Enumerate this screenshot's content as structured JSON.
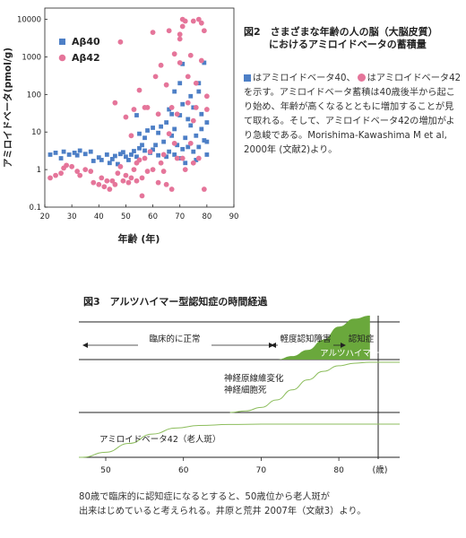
{
  "fig2": {
    "title_line1": "図2　さまざまな年齢の人の脳（大脳皮質）",
    "title_line2": "におけるアミロイドベータの蓄積量",
    "caption_part1": "はアミロイドベータ40、",
    "caption_part2": "はアミロイドベータ42を示す。アミロイドベータ蓄積は40歳後半から起こり始め、年齢が高くなるとともに増加することが見て取れる。そして、アミロイドベータ42の増加がより急峻である。Morishima-Kawashima M et al, 2000年 (文献2)より。",
    "colors": {
      "ab40": "#4d7fc6",
      "ab42": "#e5759a"
    }
  },
  "fig3": {
    "title": "図3　アルツハイマー型認知症の時間経過",
    "labels": {
      "normal": "臨床的に正常",
      "mci": "軽度認知障害",
      "dementia": "認知症",
      "ad": "アルツハイマー病",
      "neuro1": "神経原線維変化",
      "neuro2": "神経細胞死",
      "amyloid": "アミロイドベータ42（老人斑）"
    },
    "x_unit": "(歳)",
    "x_ticks": [
      50,
      60,
      70,
      80
    ],
    "caption_line1": "80歳で臨床的に認知症になるとすると、50歳位から老人斑が",
    "caption_line2": "出来はじめていると考えられる。井原と荒井 2007年（文献3）より。",
    "colors": {
      "fill": "#6aa83c",
      "line": "#8cbd5c"
    }
  },
  "chart_data": [
    {
      "type": "scatter",
      "title": "",
      "xlabel": "年齢 (年)",
      "ylabel": "アミロイドベータ(pmol/g)",
      "xlim": [
        20,
        90
      ],
      "ylim": [
        0.1,
        20000
      ],
      "yscale": "log",
      "x_ticks": [
        20,
        30,
        40,
        50,
        60,
        70,
        80,
        90
      ],
      "y_ticks": [
        0.1,
        1,
        10,
        100,
        1000,
        10000
      ],
      "legend_position": "top-left",
      "series": [
        {
          "name": "Aβ40",
          "marker": "square",
          "color": "#4d7fc6",
          "points": [
            [
              22,
              2.5
            ],
            [
              24,
              2.8
            ],
            [
              26,
              2
            ],
            [
              27,
              3
            ],
            [
              29,
              2.5
            ],
            [
              31,
              2.8
            ],
            [
              32,
              2.4
            ],
            [
              33,
              3.2
            ],
            [
              35,
              2.6
            ],
            [
              37,
              3
            ],
            [
              38,
              1.7
            ],
            [
              40,
              2.1
            ],
            [
              41,
              1.8
            ],
            [
              43,
              2.5
            ],
            [
              44,
              1.5
            ],
            [
              45,
              1.9
            ],
            [
              46,
              2.3
            ],
            [
              47,
              1.4
            ],
            [
              48,
              2.6
            ],
            [
              49,
              2.9
            ],
            [
              50,
              2.2
            ],
            [
              51,
              1.8
            ],
            [
              52,
              2.5
            ],
            [
              53,
              3.1
            ],
            [
              54,
              2.2
            ],
            [
              55,
              3.7
            ],
            [
              55,
              9
            ],
            [
              56,
              4.5
            ],
            [
              57,
              3.2
            ],
            [
              57,
              7
            ],
            [
              58,
              11
            ],
            [
              59,
              2.8
            ],
            [
              60,
              3.4
            ],
            [
              61,
              4.5
            ],
            [
              62,
              9.5
            ],
            [
              62,
              2.4
            ],
            [
              63,
              14
            ],
            [
              64,
              5.5
            ],
            [
              65,
              2.2
            ],
            [
              65,
              18
            ],
            [
              66,
              3
            ],
            [
              67,
              8
            ],
            [
              67,
              30
            ],
            [
              68,
              2.5
            ],
            [
              68,
              12
            ],
            [
              69,
              4.5
            ],
            [
              70,
              2
            ],
            [
              70,
              28
            ],
            [
              70,
              200
            ],
            [
              71,
              3.5
            ],
            [
              71,
              55
            ],
            [
              71,
              650
            ],
            [
              72,
              7
            ],
            [
              72,
              1.5
            ],
            [
              73,
              4
            ],
            [
              73,
              22
            ],
            [
              74,
              90
            ],
            [
              74,
              15
            ],
            [
              75,
              3
            ],
            [
              75,
              45
            ],
            [
              76,
              8
            ],
            [
              76,
              1.8
            ],
            [
              77,
              120
            ],
            [
              77,
              200
            ],
            [
              77,
              4
            ],
            [
              78,
              30
            ],
            [
              78,
              12
            ],
            [
              79,
              700
            ],
            [
              79,
              6
            ],
            [
              80,
              18
            ],
            [
              80,
              2.5
            ],
            [
              80,
              5.5
            ],
            [
              54,
              28
            ],
            [
              60,
              13
            ],
            [
              66,
              40
            ],
            [
              68,
              120
            ]
          ]
        },
        {
          "name": "Aβ42",
          "marker": "circle",
          "color": "#e5759a",
          "points": [
            [
              22,
              0.6
            ],
            [
              24,
              0.7
            ],
            [
              26,
              0.8
            ],
            [
              27,
              1.1
            ],
            [
              28,
              1.3
            ],
            [
              30,
              1.2
            ],
            [
              32,
              0.9
            ],
            [
              33,
              0.7
            ],
            [
              35,
              1.0
            ],
            [
              37,
              0.9
            ],
            [
              38,
              0.45
            ],
            [
              40,
              0.4
            ],
            [
              41,
              0.6
            ],
            [
              42,
              0.35
            ],
            [
              43,
              0.5
            ],
            [
              44,
              0.3
            ],
            [
              45,
              0.5
            ],
            [
              46,
              0.4
            ],
            [
              46,
              60
            ],
            [
              47,
              0.8
            ],
            [
              48,
              1.2
            ],
            [
              48,
              2500
            ],
            [
              49,
              0.5
            ],
            [
              50,
              0.7
            ],
            [
              50,
              25
            ],
            [
              51,
              0.45
            ],
            [
              52,
              0.6
            ],
            [
              52,
              8
            ],
            [
              53,
              1
            ],
            [
              53,
              40
            ],
            [
              54,
              1.5
            ],
            [
              54,
              0.5
            ],
            [
              55,
              1.8
            ],
            [
              55,
              130
            ],
            [
              56,
              0.2
            ],
            [
              56,
              0.6
            ],
            [
              57,
              45
            ],
            [
              57,
              2
            ],
            [
              58,
              0.9
            ],
            [
              58,
              45
            ],
            [
              59,
              3
            ],
            [
              60,
              4500
            ],
            [
              60,
              1
            ],
            [
              61,
              300
            ],
            [
              62,
              0.45
            ],
            [
              62,
              30
            ],
            [
              63,
              600
            ],
            [
              63,
              1.5
            ],
            [
              64,
              2.5
            ],
            [
              64,
              0.9
            ],
            [
              65,
              180
            ],
            [
              65,
              0.4
            ],
            [
              66,
              5000
            ],
            [
              66,
              9
            ],
            [
              67,
              45
            ],
            [
              67,
              0.3
            ],
            [
              68,
              1200
            ],
            [
              68,
              5
            ],
            [
              69,
              30
            ],
            [
              69,
              2
            ],
            [
              70,
              3000
            ],
            [
              70,
              4000
            ],
            [
              70,
              700
            ],
            [
              71,
              10000
            ],
            [
              71,
              6500
            ],
            [
              72,
              9000
            ],
            [
              72,
              1
            ],
            [
              73,
              60
            ],
            [
              73,
              300
            ],
            [
              74,
              1100
            ],
            [
              74,
              5
            ],
            [
              75,
              9000
            ],
            [
              75,
              1.5
            ],
            [
              76,
              200
            ],
            [
              76,
              45
            ],
            [
              77,
              10000
            ],
            [
              77,
              2
            ],
            [
              78,
              8000
            ],
            [
              78,
              800
            ],
            [
              79,
              5000
            ],
            [
              79,
              0.3
            ],
            [
              80,
              40
            ],
            [
              80,
              90
            ],
            [
              71,
              2
            ],
            [
              75,
              20
            ]
          ]
        }
      ]
    },
    {
      "type": "area",
      "title": "図3　アルツハイマー型認知症の時間経過",
      "xlabel": "(歳)",
      "xlim": [
        45,
        86
      ],
      "x_ticks": [
        50,
        60,
        70,
        80
      ],
      "series": [
        {
          "name": "認知症",
          "x": [
            72,
            74,
            76,
            78,
            80,
            82,
            84
          ],
          "values": [
            0,
            0.08,
            0.22,
            0.45,
            0.75,
            0.93,
            1.0
          ]
        },
        {
          "name": "神経原線維変化",
          "x": [
            66,
            68,
            70,
            72,
            74,
            76,
            78,
            80,
            82,
            84
          ],
          "values": [
            0,
            0.03,
            0.1,
            0.25,
            0.45,
            0.65,
            0.82,
            0.93,
            0.98,
            1.0
          ]
        },
        {
          "name": "アミロイドベータ42（老人斑）",
          "x": [
            47,
            50,
            53,
            56,
            59,
            62,
            66,
            70,
            76,
            84
          ],
          "values": [
            0,
            0.15,
            0.42,
            0.7,
            0.88,
            0.96,
            0.99,
            1.0,
            1.0,
            1.0
          ]
        }
      ]
    }
  ]
}
